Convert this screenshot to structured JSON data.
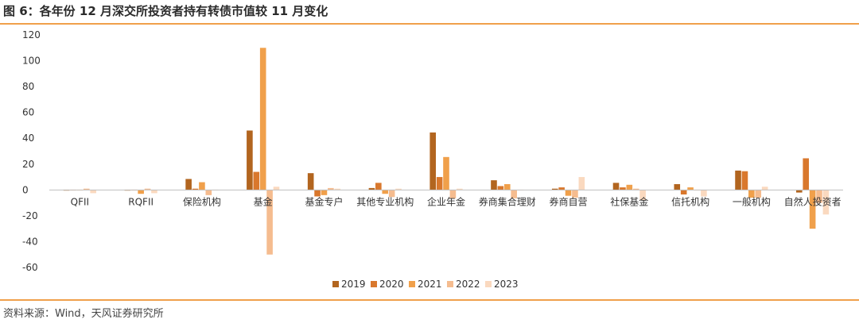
{
  "figure": {
    "title": "图 6：各年份 12 月深交所投资者持有转债市值较 11 月变化",
    "source": "资料来源：Wind，天风证券研究所"
  },
  "chart_data": {
    "type": "bar",
    "title": "",
    "xlabel": "",
    "ylabel": "",
    "ylim": [
      -60,
      120
    ],
    "yticks": [
      -60,
      -40,
      -20,
      0,
      20,
      40,
      60,
      80,
      100,
      120
    ],
    "grid": false,
    "legend_position": "bottom",
    "categories": [
      "QFII",
      "RQFII",
      "保险机构",
      "基金",
      "基金专户",
      "其他专业机构",
      "企业年金",
      "券商集合理财",
      "券商自营",
      "社保基金",
      "信托机构",
      "一般机构",
      "自然人投资者"
    ],
    "series": [
      {
        "name": "2019",
        "color": "#b2651f",
        "values": [
          -0.5,
          -0.5,
          8.5,
          46,
          13,
          1.5,
          44.5,
          7.5,
          1,
          5.5,
          4.5,
          15,
          -2
        ]
      },
      {
        "name": "2020",
        "color": "#d9782d",
        "values": [
          0,
          0,
          1,
          14,
          -5,
          5.5,
          10,
          3,
          2,
          2,
          -3.5,
          14.5,
          24.5
        ]
      },
      {
        "name": "2021",
        "color": "#f0a04b",
        "values": [
          0,
          -3,
          6,
          110,
          -4,
          -3,
          25.5,
          4.5,
          -4.5,
          4,
          2,
          -6,
          -30
        ]
      },
      {
        "name": "2022",
        "color": "#f5bc8f",
        "values": [
          1,
          1,
          -4,
          -50,
          1.5,
          -5.5,
          -6.5,
          -6.5,
          -6,
          1,
          0,
          -6,
          -10
        ]
      },
      {
        "name": "2023",
        "color": "#fad9bf",
        "values": [
          -2.5,
          -2.5,
          0,
          2.5,
          1,
          1,
          1,
          0,
          10,
          -8,
          -5,
          2.5,
          -19
        ]
      }
    ]
  }
}
